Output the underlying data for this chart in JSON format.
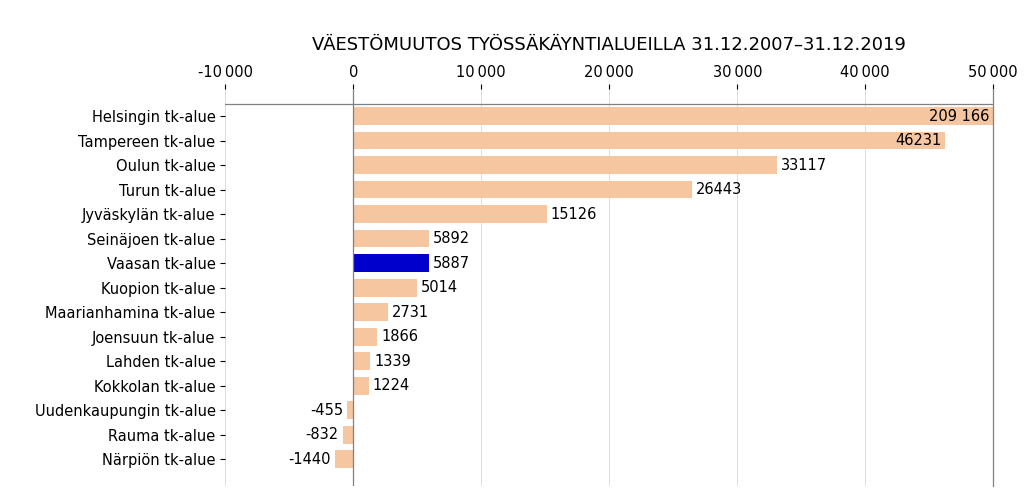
{
  "title": "VÄESTÖMUUTOS TYÖSSÄKÄYNTIALUEILLA 31.12.2007–31.12.2019",
  "categories": [
    "Helsingin tk-alue",
    "Tampereen tk-alue",
    "Oulun tk-alue",
    "Turun tk-alue",
    "Jyväskylän tk-alue",
    "Seinäjoen tk-alue",
    "Vaasan tk-alue",
    "Kuopion tk-alue",
    "Maarianhamina tk-alue",
    "Joensuun tk-alue",
    "Lahden tk-alue",
    "Kokkolan tk-alue",
    "Uudenkaupungin tk-alue",
    "Rauma tk-alue",
    "Närpiön tk-alue"
  ],
  "values": [
    209166,
    46231,
    33117,
    26443,
    15126,
    5892,
    5887,
    5014,
    2731,
    1866,
    1339,
    1224,
    -455,
    -832,
    -1440
  ],
  "labels": [
    "209 166",
    "46231",
    "33117",
    "26443",
    "15126",
    "5892",
    "5887",
    "5014",
    "2731",
    "1866",
    "1339",
    "1224",
    "-455",
    "-832",
    "-1440"
  ],
  "inside_label_threshold": 46000,
  "highlight_index": 6,
  "bar_color_default": "#F5C6A0",
  "bar_color_highlight": "#0000CD",
  "background_color": "#FFFFFF",
  "xlim": [
    -10000,
    50000
  ],
  "xticks": [
    -10000,
    0,
    10000,
    20000,
    30000,
    40000,
    50000
  ],
  "title_fontsize": 13,
  "tick_fontsize": 10.5,
  "label_fontsize": 10.5,
  "bar_height": 0.72
}
